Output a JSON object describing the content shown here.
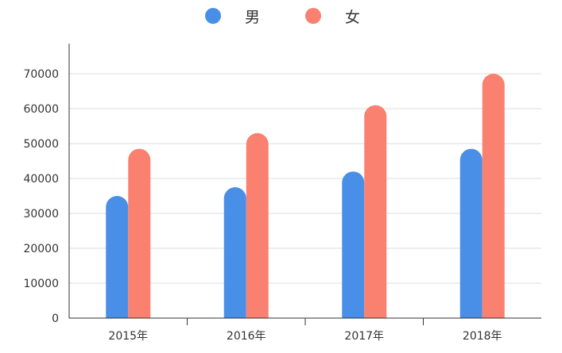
{
  "chart_data": {
    "type": "bar",
    "categories": [
      "2015年",
      "2016年",
      "2017年",
      "2018年"
    ],
    "series": [
      {
        "name": "男",
        "color": "#4a8fe7",
        "values": [
          35000,
          37500,
          42000,
          48500
        ]
      },
      {
        "name": "女",
        "color": "#fa8070",
        "values": [
          48500,
          53000,
          61000,
          70000
        ]
      }
    ],
    "ylim": [
      0,
      70000
    ],
    "yticks": [
      0,
      10000,
      20000,
      30000,
      40000,
      50000,
      60000,
      70000
    ],
    "grid": true,
    "legend": "top-center",
    "title": "",
    "xlabel": "",
    "ylabel": ""
  }
}
